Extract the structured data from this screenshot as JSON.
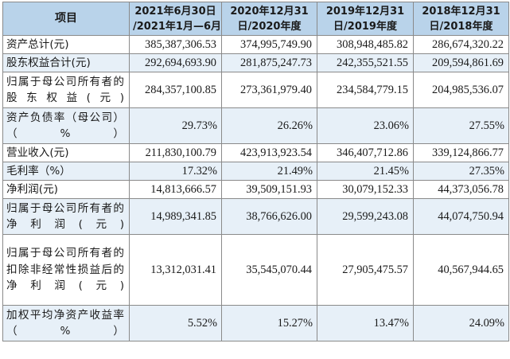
{
  "table": {
    "headers": [
      {
        "lines": [
          "项目"
        ]
      },
      {
        "lines": [
          "2021年6月30日",
          "/2021年1月—6月"
        ]
      },
      {
        "lines": [
          "2020年12月31",
          "日/2020年度"
        ]
      },
      {
        "lines": [
          "2019年12月31",
          "日/2019年度"
        ]
      },
      {
        "lines": [
          "2018年12月31",
          "日/2018年度"
        ]
      }
    ],
    "rows": [
      {
        "label": "资产总计(元)",
        "values": [
          "385,387,306.53",
          "374,995,749.90",
          "308,948,485.82",
          "286,674,320.22"
        ]
      },
      {
        "label": "股东权益合计(元)",
        "values": [
          "292,694,693.90",
          "281,875,247.73",
          "242,355,521.55",
          "209,594,861.69"
        ]
      },
      {
        "label": "归属于母公司所有者的股东权益(元)",
        "values": [
          "284,357,100.85",
          "273,361,979.40",
          "234,584,779.15",
          "204,985,536.07"
        ]
      },
      {
        "label": "资产负债率（母公司）（%）",
        "values": [
          "29.73%",
          "26.26%",
          "23.06%",
          "27.55%"
        ]
      },
      {
        "label": "营业收入(元)",
        "values": [
          "211,830,100.79",
          "423,913,923.54",
          "346,407,712.86",
          "339,124,866.77"
        ]
      },
      {
        "label": "毛利率（%）",
        "values": [
          "17.32%",
          "21.49%",
          "21.45%",
          "27.35%"
        ]
      },
      {
        "label": "净利润(元)",
        "values": [
          "14,813,666.57",
          "39,509,151.93",
          "30,079,152.33",
          "44,373,056.78"
        ]
      },
      {
        "label": "归属于母公司所有者的净利润(元)",
        "values": [
          "14,989,341.85",
          "38,766,626.00",
          "29,599,243.08",
          "44,074,750.94"
        ]
      },
      {
        "label": "归属于母公司所有者的扣除非经常性损益后的净利润(元)",
        "values": [
          "13,312,031.41",
          "35,545,070.44",
          "27,905,475.57",
          "40,567,944.65"
        ]
      },
      {
        "label": "加权平均净资产收益率（%）",
        "values": [
          "5.52%",
          "15.27%",
          "13.47%",
          "24.09%"
        ]
      }
    ]
  },
  "colors": {
    "header_bg": "#b9d3ea",
    "alt_row_bg": "#e7f0f8",
    "border": "#8a8a8a"
  }
}
